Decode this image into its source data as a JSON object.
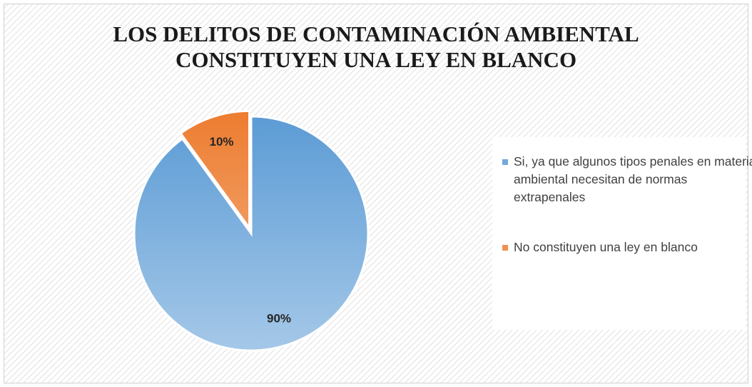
{
  "chart_data": {
    "type": "pie",
    "title": [
      "LOS DELITOS DE CONTAMINACIÓN AMBIENTAL",
      "CONSTITUYEN UNA LEY EN BLANCO"
    ],
    "categories": [
      "Si, ya que algunos tipos penales en materia ambiental necesitan de normas extrapenales",
      "No constituyen una ley en blanco"
    ],
    "values": [
      90,
      10
    ],
    "value_labels": [
      "90%",
      "10%"
    ],
    "colors": [
      "#5b9bd5",
      "#ed7d31"
    ],
    "legend": "right"
  }
}
